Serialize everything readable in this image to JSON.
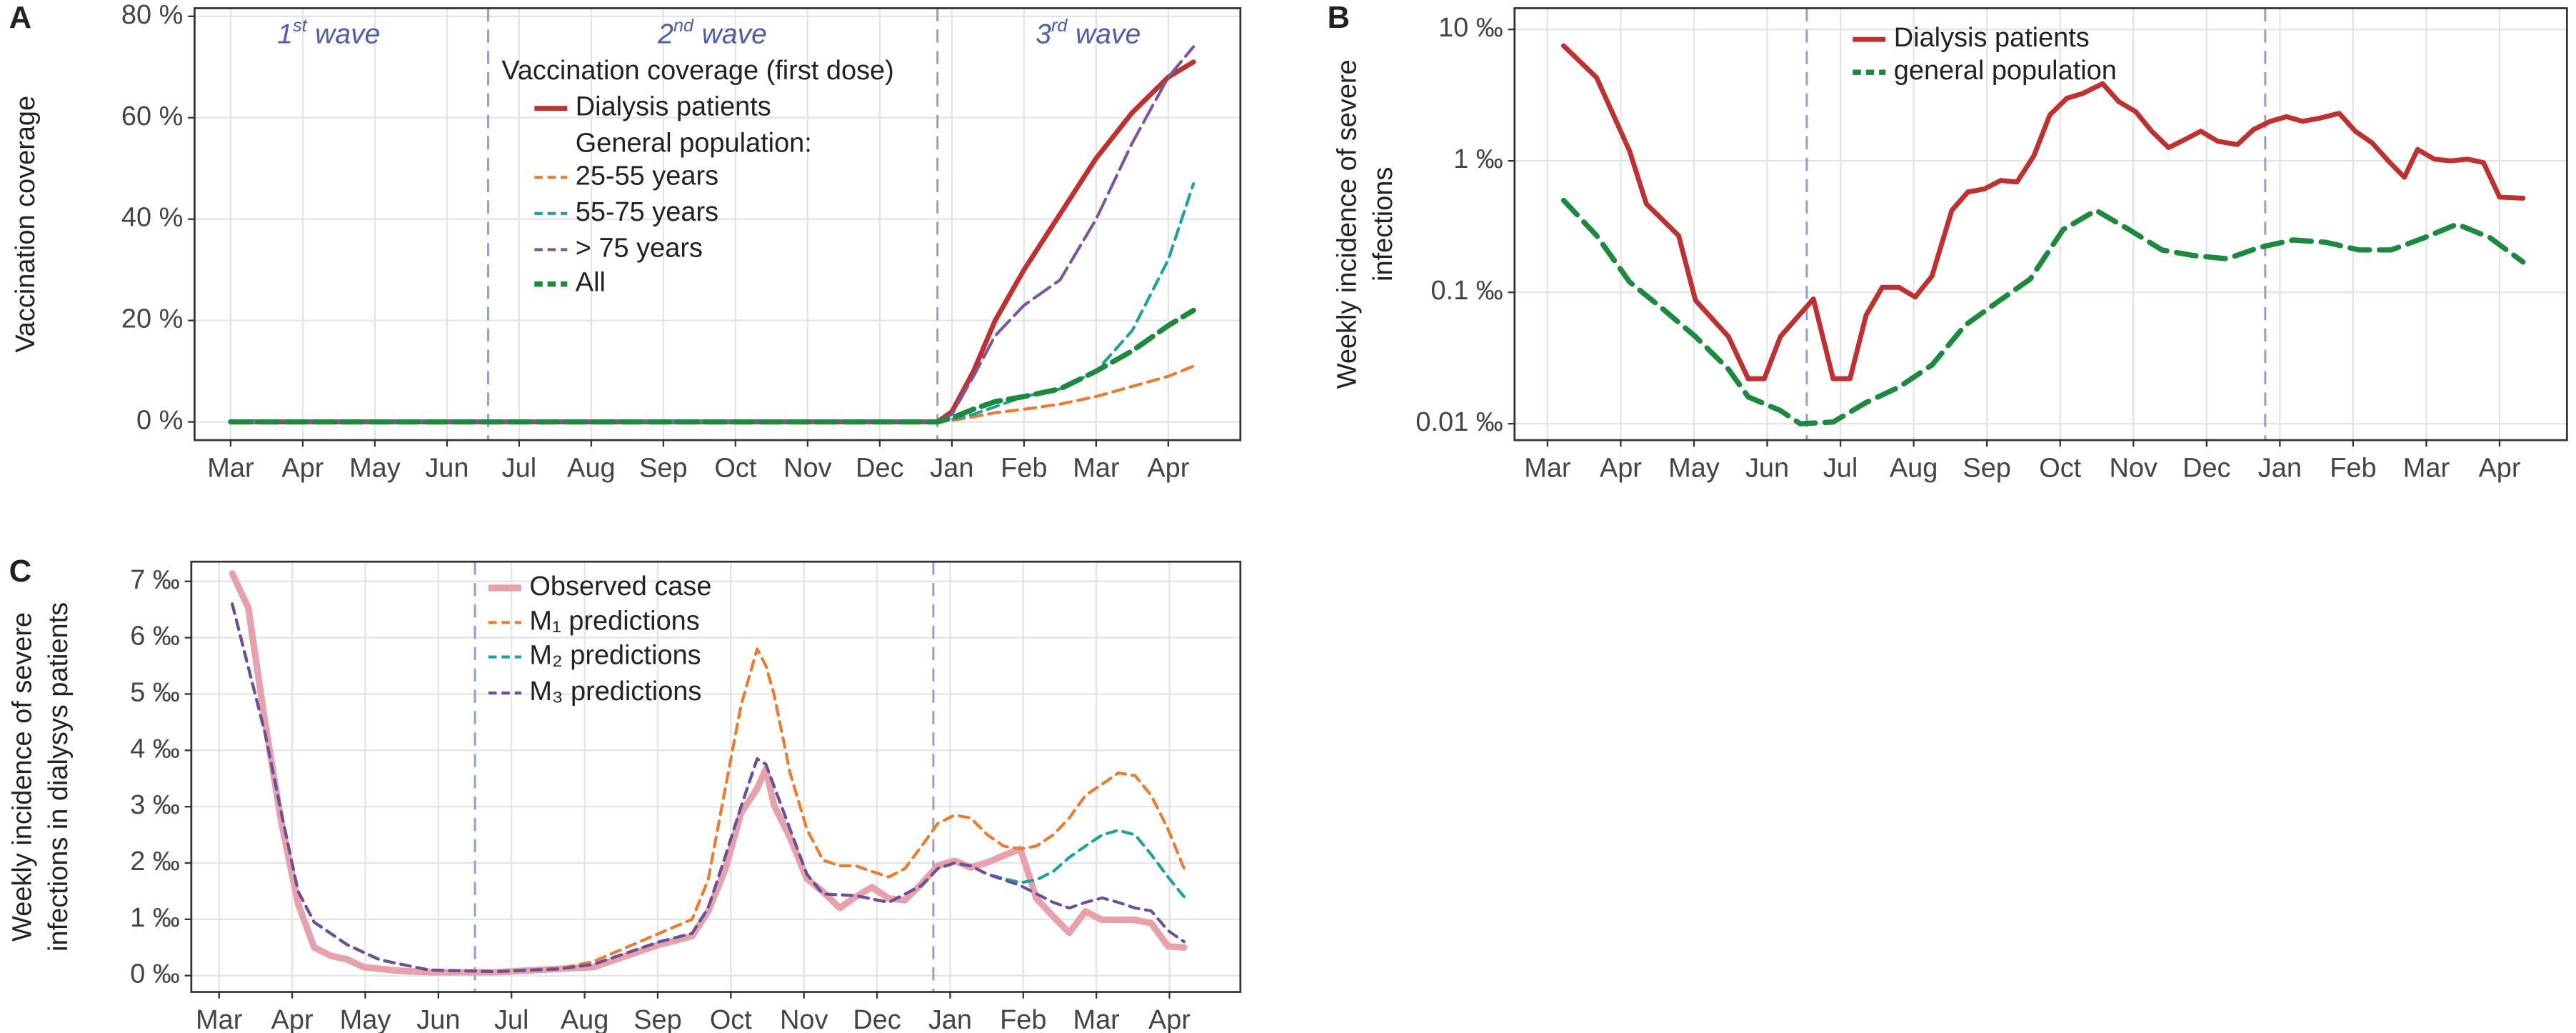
{
  "chart_data": [
    {
      "type": "line",
      "panel": "A",
      "ylabel": [
        "Vaccination coverage"
      ],
      "xlim": [
        -0.5,
        14
      ],
      "ylim": [
        -3.6,
        81.6
      ],
      "xticks": [
        {
          "value": 0,
          "label": "Mar"
        },
        {
          "value": 1,
          "label": "Apr"
        },
        {
          "value": 2,
          "label": "May"
        },
        {
          "value": 3,
          "label": "Jun"
        },
        {
          "value": 4,
          "label": "Jul"
        },
        {
          "value": 5,
          "label": "Aug"
        },
        {
          "value": 6,
          "label": "Sep"
        },
        {
          "value": 7,
          "label": "Oct"
        },
        {
          "value": 8,
          "label": "Nov"
        },
        {
          "value": 9,
          "label": "Dec"
        },
        {
          "value": 10,
          "label": "Jan"
        },
        {
          "value": 11,
          "label": "Feb"
        },
        {
          "value": 12,
          "label": "Mar"
        },
        {
          "value": 13,
          "label": "Apr"
        }
      ],
      "yticks": [
        {
          "value": 0,
          "label": "0 %"
        },
        {
          "value": 20,
          "label": "20 %"
        },
        {
          "value": 40,
          "label": "40 %"
        },
        {
          "value": 60,
          "label": "60 %"
        },
        {
          "value": 80,
          "label": "80 %"
        }
      ],
      "grid": true,
      "vlines": [
        3.57,
        9.8
      ],
      "annotations": [
        {
          "number": "1",
          "suffix": "st",
          "text": "wave",
          "x": 1.36
        },
        {
          "number": "2",
          "suffix": "nd",
          "text": "wave",
          "x": 6.68
        },
        {
          "number": "3",
          "suffix": "rd",
          "text": "wave",
          "x": 11.89
        }
      ],
      "legend_title": "Vaccination coverage (first dose)",
      "legend_subtitle": "General population:",
      "x": [
        0,
        9.8,
        10,
        10.3,
        10.6,
        11,
        11.5,
        12,
        12.5,
        13,
        13.35
      ],
      "series": [
        {
          "name": "Dialysis patients",
          "color": "#c0302e",
          "width": 3,
          "values": [
            0,
            0,
            2,
            10,
            20,
            30,
            41,
            52,
            61,
            68,
            71
          ]
        },
        {
          "name": "25-55 years",
          "color": "#f07a2a",
          "dash": "7 4",
          "width": 1.8,
          "values": [
            0,
            0,
            0.3,
            1,
            1.8,
            2.5,
            3.5,
            5,
            7,
            9,
            11
          ]
        },
        {
          "name": "55-75 years",
          "color": "#1aa39a",
          "dash": "7 4",
          "width": 1.8,
          "values": [
            0,
            0,
            0.5,
            1.5,
            3,
            5,
            6.5,
            10,
            18,
            32,
            47
          ]
        },
        {
          "name": "> 75 years",
          "color": "#7b55a0",
          "dash": "12 4",
          "width": 1.8,
          "values": [
            0,
            0,
            1.5,
            9,
            17,
            23,
            28,
            40,
            55,
            68,
            74
          ]
        },
        {
          "name": "All",
          "color": "#1a8a3c",
          "dash": "12 5",
          "width": 3.2,
          "values": [
            0,
            0,
            0.8,
            2.5,
            4,
            5,
            6.5,
            10,
            14,
            19,
            22
          ]
        }
      ]
    },
    {
      "type": "line",
      "panel": "B",
      "ylabel": [
        "Weekly incidence of severe",
        "infections"
      ],
      "log_scale": true,
      "xlim": [
        -0.45,
        13.92
      ],
      "ylim": [
        0.0075,
        14.5
      ],
      "xticks": [
        {
          "value": 0,
          "label": "Mar"
        },
        {
          "value": 1,
          "label": "Apr"
        },
        {
          "value": 2,
          "label": "May"
        },
        {
          "value": 3,
          "label": "Jun"
        },
        {
          "value": 4,
          "label": "Jul"
        },
        {
          "value": 5,
          "label": "Aug"
        },
        {
          "value": 6,
          "label": "Sep"
        },
        {
          "value": 7,
          "label": "Oct"
        },
        {
          "value": 8,
          "label": "Nov"
        },
        {
          "value": 9,
          "label": "Dec"
        },
        {
          "value": 10,
          "label": "Jan"
        },
        {
          "value": 11,
          "label": "Feb"
        },
        {
          "value": 12,
          "label": "Mar"
        },
        {
          "value": 13,
          "label": "Apr"
        }
      ],
      "yticks": [
        {
          "value": 10,
          "label": "10 ‰"
        },
        {
          "value": 1,
          "label": "1 ‰"
        },
        {
          "value": 0.1,
          "label": "0.1 ‰"
        },
        {
          "value": 0.01,
          "label": "0.01 ‰"
        }
      ],
      "grid": true,
      "vlines": [
        3.54,
        9.8
      ],
      "series": [
        {
          "name": "Dialysis patients",
          "color": "#c0302e",
          "width": 3,
          "x": [
            0.22,
            0.67,
            1.12,
            1.35,
            1.79,
            2.02,
            2.47,
            2.74,
            2.96,
            3.18,
            3.63,
            3.9,
            4.13,
            4.35,
            4.57,
            4.8,
            5.02,
            5.25,
            5.52,
            5.74,
            5.96,
            6.19,
            6.41,
            6.64,
            6.86,
            7.09,
            7.31,
            7.58,
            7.8,
            8.03,
            8.25,
            8.48,
            8.7,
            8.92,
            9.15,
            9.42,
            9.64,
            9.87,
            10.09,
            10.31,
            10.54,
            10.81,
            11.03,
            11.26,
            11.48,
            11.7,
            11.88,
            12.11,
            12.33,
            12.56,
            12.78,
            13.0,
            13.32
          ],
          "values": [
            7.5,
            4.3,
            1.19,
            0.47,
            0.27,
            0.087,
            0.046,
            0.022,
            0.022,
            0.046,
            0.089,
            0.022,
            0.022,
            0.067,
            0.109,
            0.109,
            0.092,
            0.133,
            0.42,
            0.58,
            0.61,
            0.71,
            0.69,
            1.09,
            2.24,
            2.99,
            3.26,
            3.87,
            2.82,
            2.37,
            1.68,
            1.26,
            1.45,
            1.68,
            1.41,
            1.33,
            1.73,
            2.0,
            2.17,
            2.0,
            2.11,
            2.3,
            1.68,
            1.37,
            1.0,
            0.75,
            1.22,
            1.03,
            1.0,
            1.03,
            0.97,
            0.53,
            0.52
          ]
        },
        {
          "name": "general population",
          "color": "#1a8a3c",
          "dash": "12 6",
          "width": 3.2,
          "x": [
            0.22,
            0.67,
            1.12,
            1.57,
            2.02,
            2.47,
            2.74,
            3.18,
            3.45,
            3.9,
            4.35,
            4.8,
            5.25,
            5.7,
            6.14,
            6.59,
            7.04,
            7.49,
            7.94,
            8.39,
            8.83,
            9.28,
            9.73,
            10.18,
            10.63,
            11.08,
            11.52,
            11.97,
            12.42,
            12.87,
            13.32
          ],
          "values": [
            0.5,
            0.27,
            0.12,
            0.075,
            0.046,
            0.026,
            0.016,
            0.0126,
            0.01,
            0.0103,
            0.0145,
            0.019,
            0.028,
            0.056,
            0.084,
            0.126,
            0.3,
            0.42,
            0.3,
            0.21,
            0.19,
            0.18,
            0.22,
            0.25,
            0.24,
            0.21,
            0.21,
            0.26,
            0.33,
            0.26,
            0.17
          ]
        }
      ]
    },
    {
      "type": "line",
      "panel": "C",
      "ylabel": [
        "Weekly incidence of severe",
        "infections in dialysys patients"
      ],
      "xlim": [
        -0.38,
        13.97
      ],
      "ylim": [
        -0.29,
        7.35
      ],
      "xticks": [
        {
          "value": 0,
          "label": "Mar"
        },
        {
          "value": 1,
          "label": "Apr"
        },
        {
          "value": 2,
          "label": "May"
        },
        {
          "value": 3,
          "label": "Jun"
        },
        {
          "value": 4,
          "label": "Jul"
        },
        {
          "value": 5,
          "label": "Aug"
        },
        {
          "value": 6,
          "label": "Sep"
        },
        {
          "value": 7,
          "label": "Oct"
        },
        {
          "value": 8,
          "label": "Nov"
        },
        {
          "value": 9,
          "label": "Dec"
        },
        {
          "value": 10,
          "label": "Jan"
        },
        {
          "value": 11,
          "label": "Feb"
        },
        {
          "value": 12,
          "label": "Mar"
        },
        {
          "value": 13,
          "label": "Apr"
        }
      ],
      "yticks": [
        {
          "value": 0,
          "label": "0 ‰"
        },
        {
          "value": 1,
          "label": "1 ‰"
        },
        {
          "value": 2,
          "label": "2 ‰"
        },
        {
          "value": 3,
          "label": "3 ‰"
        },
        {
          "value": 4,
          "label": "4 ‰"
        },
        {
          "value": 5,
          "label": "5 ‰"
        },
        {
          "value": 6,
          "label": "6 ‰"
        },
        {
          "value": 7,
          "label": "7 ‰"
        }
      ],
      "grid": true,
      "vlines": [
        3.5,
        9.77
      ],
      "series": [
        {
          "name": "Observed case",
          "color": "#e8a0aa",
          "width": 4,
          "x": [
            0.18,
            0.4,
            0.63,
            0.85,
            1.08,
            1.3,
            1.53,
            1.75,
            1.98,
            2.42,
            2.87,
            3.77,
            4.67,
            5.12,
            5.57,
            6.02,
            6.47,
            6.69,
            6.92,
            7.14,
            7.36,
            7.48,
            7.59,
            7.81,
            8.04,
            8.26,
            8.49,
            8.71,
            8.93,
            9.16,
            9.38,
            9.61,
            9.83,
            10.06,
            10.28,
            10.51,
            10.73,
            10.96,
            11.18,
            11.41,
            11.63,
            11.85,
            12.08,
            12.53,
            12.75,
            12.98,
            13.2
          ],
          "values": [
            7.14,
            6.53,
            4.49,
            2.74,
            1.28,
            0.5,
            0.35,
            0.29,
            0.15,
            0.09,
            0.06,
            0.06,
            0.12,
            0.15,
            0.35,
            0.55,
            0.7,
            1.14,
            1.87,
            2.89,
            3.32,
            3.67,
            3.03,
            2.45,
            1.72,
            1.49,
            1.2,
            1.4,
            1.57,
            1.37,
            1.34,
            1.63,
            1.95,
            2.04,
            1.92,
            2.01,
            2.13,
            2.25,
            1.37,
            1.05,
            0.76,
            1.14,
            0.99,
            0.99,
            0.93,
            0.52,
            0.5
          ]
        },
        {
          "name": "M₁ predictions",
          "color": "#f07a2a",
          "dash": "6 4",
          "width": 1.8,
          "x": [
            0.18,
            0.63,
            0.85,
            1.08,
            1.3,
            1.75,
            2.2,
            2.87,
            3.77,
            4.67,
            5.12,
            5.57,
            6.02,
            6.47,
            6.69,
            6.92,
            7.14,
            7.36,
            7.48,
            7.59,
            7.81,
            8.04,
            8.26,
            8.49,
            8.71,
            8.93,
            9.16,
            9.38,
            9.61,
            9.83,
            10.06,
            10.28,
            10.51,
            10.73,
            10.96,
            11.18,
            11.41,
            11.63,
            11.85,
            12.08,
            12.3,
            12.53,
            12.75,
            12.98,
            13.2
          ],
          "values": [
            6.6,
            4.3,
            2.9,
            1.5,
            0.95,
            0.55,
            0.28,
            0.1,
            0.07,
            0.13,
            0.25,
            0.5,
            0.75,
            1.0,
            1.7,
            3.3,
            4.8,
            5.8,
            5.5,
            5.0,
            3.6,
            2.6,
            2.05,
            1.95,
            1.95,
            1.85,
            1.75,
            1.9,
            2.3,
            2.7,
            2.85,
            2.8,
            2.5,
            2.3,
            2.25,
            2.3,
            2.5,
            2.8,
            3.2,
            3.4,
            3.6,
            3.55,
            3.2,
            2.6,
            1.9
          ]
        },
        {
          "name": "M₂ predictions",
          "color": "#1aa39a",
          "dash": "6 4",
          "width": 1.8,
          "x": [
            0.18,
            0.63,
            0.85,
            1.08,
            1.3,
            1.75,
            2.2,
            2.87,
            3.77,
            4.67,
            5.12,
            5.57,
            6.02,
            6.47,
            6.69,
            6.92,
            7.14,
            7.36,
            7.48,
            7.81,
            8.04,
            8.26,
            8.71,
            9.16,
            9.61,
            9.83,
            10.06,
            10.28,
            10.51,
            10.96,
            11.18,
            11.41,
            11.63,
            11.85,
            12.08,
            12.3,
            12.53,
            12.75,
            12.98,
            13.2
          ],
          "values": [
            6.6,
            4.3,
            2.9,
            1.5,
            0.95,
            0.55,
            0.28,
            0.1,
            0.07,
            0.12,
            0.2,
            0.4,
            0.6,
            0.75,
            1.2,
            2.1,
            3.0,
            3.85,
            3.75,
            2.6,
            1.8,
            1.45,
            1.42,
            1.3,
            1.6,
            1.9,
            2.0,
            1.95,
            1.8,
            1.65,
            1.7,
            1.85,
            2.1,
            2.3,
            2.5,
            2.58,
            2.5,
            2.15,
            1.75,
            1.4
          ]
        },
        {
          "name": "M₃ predictions",
          "color": "#6c4f9c",
          "dash": "6 4",
          "width": 1.8,
          "x": [
            0.18,
            0.63,
            0.85,
            1.08,
            1.3,
            1.75,
            2.2,
            2.87,
            3.77,
            4.67,
            5.12,
            5.57,
            6.02,
            6.47,
            6.69,
            6.92,
            7.14,
            7.36,
            7.48,
            7.81,
            8.04,
            8.26,
            8.71,
            9.16,
            9.61,
            9.83,
            10.06,
            10.28,
            10.51,
            10.96,
            11.41,
            11.63,
            11.85,
            12.08,
            12.3,
            12.53,
            12.75,
            12.98,
            13.2
          ],
          "values": [
            6.6,
            4.3,
            2.9,
            1.5,
            0.95,
            0.55,
            0.28,
            0.1,
            0.07,
            0.12,
            0.2,
            0.4,
            0.6,
            0.75,
            1.2,
            2.1,
            3.0,
            3.85,
            3.75,
            2.6,
            1.8,
            1.45,
            1.42,
            1.3,
            1.6,
            1.9,
            2.0,
            1.95,
            1.8,
            1.6,
            1.3,
            1.2,
            1.3,
            1.38,
            1.3,
            1.2,
            1.15,
            0.8,
            0.6
          ]
        }
      ]
    }
  ]
}
